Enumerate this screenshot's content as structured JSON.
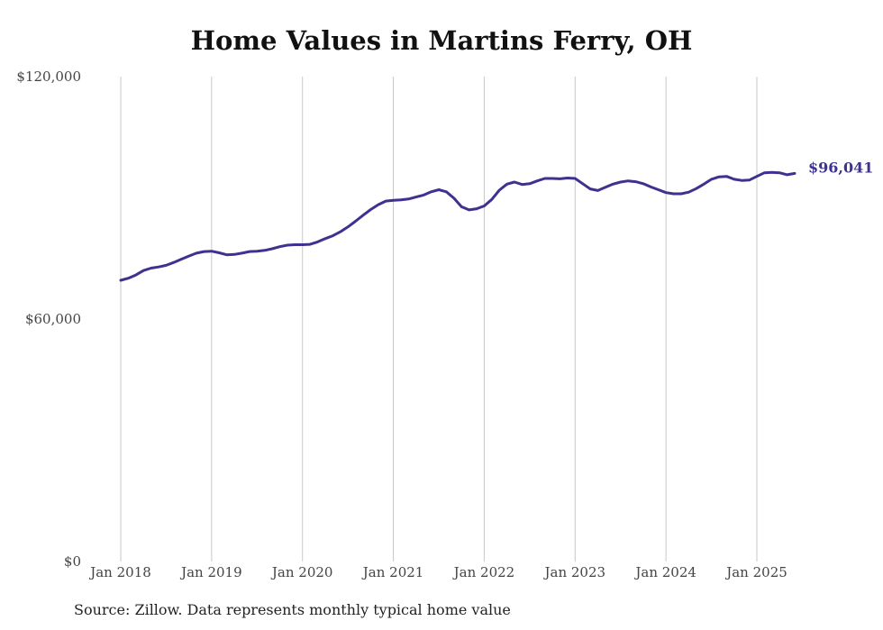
{
  "title": "Home Values in Martins Ferry, OH",
  "source": "Source: Zillow. Data represents monthly typical home value",
  "colors": {
    "line": "#3d3290",
    "grid": "#c8c8c8",
    "text": "#444444"
  },
  "chart_data": {
    "type": "line",
    "title": "Home Values in Martins Ferry, OH",
    "xlabel": "",
    "ylabel": "",
    "ylim": [
      0,
      120000
    ],
    "xlim": [
      "2018-01",
      "2025-05"
    ],
    "y_ticks": [
      0,
      60000,
      120000
    ],
    "y_tick_labels": [
      "$0",
      "$60,000",
      "$120,000"
    ],
    "x_ticks": [
      "2018-01",
      "2019-01",
      "2020-01",
      "2021-01",
      "2022-01",
      "2023-01",
      "2024-01",
      "2025-01"
    ],
    "x_tick_labels": [
      "Jan 2018",
      "Jan 2019",
      "Jan 2020",
      "Jan 2021",
      "Jan 2022",
      "Jan 2023",
      "Jan 2024",
      "Jan 2025"
    ],
    "grid": "vertical",
    "end_label": "$96,041",
    "series": [
      {
        "color": "#3d3290",
        "points": [
          [
            "2018-01",
            69600
          ],
          [
            "2018-02",
            70100
          ],
          [
            "2018-03",
            70900
          ],
          [
            "2018-04",
            72000
          ],
          [
            "2018-05",
            72600
          ],
          [
            "2018-06",
            72900
          ],
          [
            "2018-07",
            73300
          ],
          [
            "2018-08",
            74000
          ],
          [
            "2018-09",
            74800
          ],
          [
            "2018-10",
            75600
          ],
          [
            "2018-11",
            76300
          ],
          [
            "2018-12",
            76700
          ],
          [
            "2019-01",
            76800
          ],
          [
            "2019-02",
            76400
          ],
          [
            "2019-03",
            75900
          ],
          [
            "2019-04",
            76000
          ],
          [
            "2019-05",
            76300
          ],
          [
            "2019-06",
            76700
          ],
          [
            "2019-07",
            76800
          ],
          [
            "2019-08",
            77000
          ],
          [
            "2019-09",
            77400
          ],
          [
            "2019-10",
            77900
          ],
          [
            "2019-11",
            78300
          ],
          [
            "2019-12",
            78400
          ],
          [
            "2020-01",
            78400
          ],
          [
            "2020-02",
            78500
          ],
          [
            "2020-03",
            79100
          ],
          [
            "2020-04",
            79900
          ],
          [
            "2020-05",
            80600
          ],
          [
            "2020-06",
            81600
          ],
          [
            "2020-07",
            82800
          ],
          [
            "2020-08",
            84200
          ],
          [
            "2020-09",
            85700
          ],
          [
            "2020-10",
            87100
          ],
          [
            "2020-11",
            88300
          ],
          [
            "2020-12",
            89200
          ],
          [
            "2021-01",
            89400
          ],
          [
            "2021-02",
            89500
          ],
          [
            "2021-03",
            89700
          ],
          [
            "2021-04",
            90200
          ],
          [
            "2021-05",
            90700
          ],
          [
            "2021-06",
            91500
          ],
          [
            "2021-07",
            92000
          ],
          [
            "2021-08",
            91500
          ],
          [
            "2021-09",
            89900
          ],
          [
            "2021-10",
            87800
          ],
          [
            "2021-11",
            87000
          ],
          [
            "2021-12",
            87300
          ],
          [
            "2022-01",
            88000
          ],
          [
            "2022-02",
            89600
          ],
          [
            "2022-03",
            91900
          ],
          [
            "2022-04",
            93400
          ],
          [
            "2022-05",
            93900
          ],
          [
            "2022-06",
            93300
          ],
          [
            "2022-07",
            93500
          ],
          [
            "2022-08",
            94200
          ],
          [
            "2022-09",
            94800
          ],
          [
            "2022-10",
            94800
          ],
          [
            "2022-11",
            94700
          ],
          [
            "2022-12",
            94900
          ],
          [
            "2023-01",
            94800
          ],
          [
            "2023-02",
            93500
          ],
          [
            "2023-03",
            92200
          ],
          [
            "2023-04",
            91800
          ],
          [
            "2023-05",
            92600
          ],
          [
            "2023-06",
            93400
          ],
          [
            "2023-07",
            93900
          ],
          [
            "2023-08",
            94200
          ],
          [
            "2023-09",
            94000
          ],
          [
            "2023-10",
            93500
          ],
          [
            "2023-11",
            92700
          ],
          [
            "2023-12",
            92000
          ],
          [
            "2024-01",
            91300
          ],
          [
            "2024-02",
            91000
          ],
          [
            "2024-03",
            91000
          ],
          [
            "2024-04",
            91400
          ],
          [
            "2024-05",
            92300
          ],
          [
            "2024-06",
            93400
          ],
          [
            "2024-07",
            94600
          ],
          [
            "2024-08",
            95200
          ],
          [
            "2024-09",
            95300
          ],
          [
            "2024-10",
            94600
          ],
          [
            "2024-11",
            94300
          ],
          [
            "2024-12",
            94400
          ],
          [
            "2025-01",
            95300
          ],
          [
            "2025-02",
            96200
          ],
          [
            "2025-03",
            96300
          ],
          [
            "2025-04",
            96200
          ],
          [
            "2025-05",
            95700
          ],
          [
            "2025-06",
            96041
          ]
        ]
      }
    ]
  }
}
